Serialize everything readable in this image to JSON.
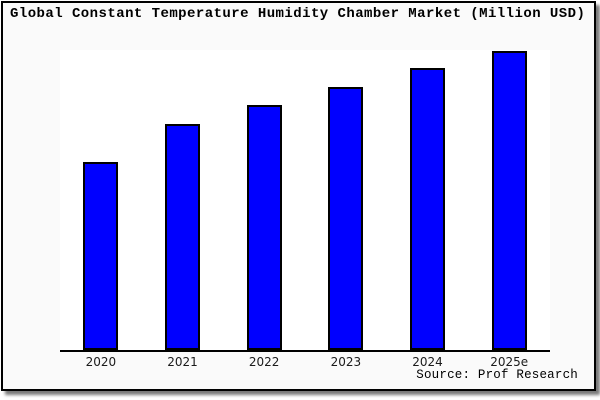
{
  "header": {
    "title": "Global Constant Temperature Humidity Chamber Market (Million USD)"
  },
  "footer": {
    "source": "Source: Prof Research"
  },
  "colors": {
    "page_background": "#fafafa",
    "plot_background": "#ffffff",
    "frame_border": "#000000",
    "axis_line": "#000000",
    "tick_label": "#1a1a1a"
  },
  "chart_data": {
    "type": "bar",
    "title": "Global Constant Temperature Humidity Chamber Market (Million USD)",
    "categories": [
      "2020",
      "2021",
      "2022",
      "2023",
      "2024",
      "2025e"
    ],
    "values": [
      188,
      226,
      245,
      263,
      282,
      299
    ],
    "xlabel": "",
    "ylabel": "",
    "ylim": [
      0,
      300
    ],
    "y_axis_labels_shown": false,
    "grid": false,
    "legend": false,
    "bar_color": "#0000ff",
    "bar_border_color": "#000000",
    "source": "Source: Prof Research"
  }
}
